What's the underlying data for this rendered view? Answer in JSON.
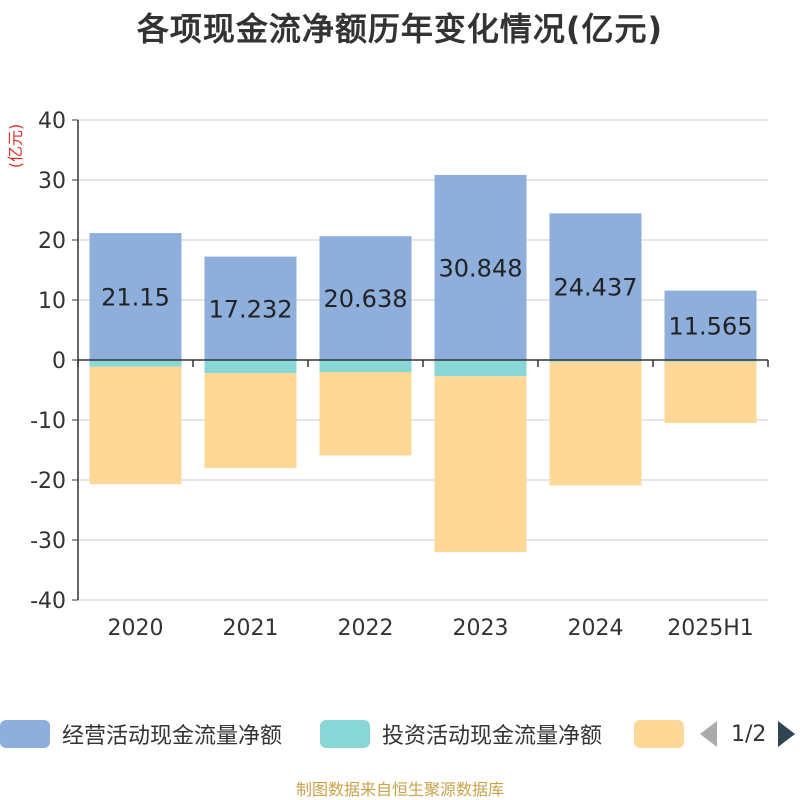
{
  "title": "各项现金流净额历年变化情况(亿元)",
  "unit_label": "(亿元)",
  "footer": "制图数据来自恒生聚源数据库",
  "pager": {
    "text": "1/2"
  },
  "colors": {
    "operating": "#8eaedb",
    "investing": "#88d6d6",
    "financing": "#ffd898",
    "unit": "#d8312a",
    "grid": "#cccccc",
    "axis": "#333333",
    "text": "#333333"
  },
  "legend": [
    {
      "label": "经营活动现金流量净额",
      "color": "#8eaedb"
    },
    {
      "label": "投资活动现金流量净额",
      "color": "#88d6d6"
    },
    {
      "label": "",
      "color": "#ffd898"
    }
  ],
  "chart_data": {
    "type": "bar",
    "stacked": true,
    "categories": [
      "2020",
      "2021",
      "2022",
      "2023",
      "2024",
      "2025H1"
    ],
    "ylim": [
      -40,
      40
    ],
    "yticks": [
      "40",
      "30",
      "20",
      "10",
      "0",
      "-10",
      "-20",
      "-30",
      "-40"
    ],
    "ylabel": "(亿元)",
    "grid": true,
    "legend_position": "bottom",
    "series": [
      {
        "name": "经营活动现金流量净额",
        "values": [
          21.15,
          17.232,
          20.638,
          30.848,
          24.437,
          11.565
        ],
        "labels": [
          "21.15",
          "17.232",
          "20.638",
          "30.848",
          "24.437",
          "11.565"
        ],
        "color": "#8eaedb"
      },
      {
        "name": "投资活动现金流量净额",
        "values": [
          -1.1,
          -2.2,
          -2.0,
          -2.7,
          -0.3,
          -0.3
        ],
        "color": "#88d6d6"
      },
      {
        "values": [
          -19.6,
          -15.8,
          -13.9,
          -29.3,
          -20.6,
          -10.2
        ],
        "color": "#ffd898"
      }
    ]
  }
}
